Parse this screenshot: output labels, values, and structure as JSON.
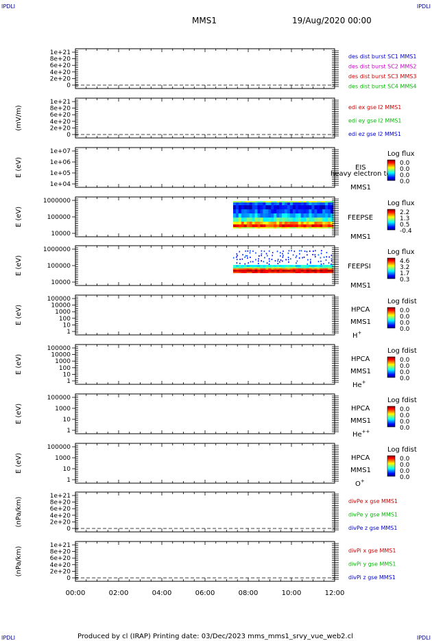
{
  "header": {
    "corner_label": "IPDLI",
    "mission": "MMS1",
    "date": "19/Aug/2020 00:00"
  },
  "footer": {
    "text": "Produced by cl (IRAP)   Printing date: 03/Dec/2023   mms_mms1_srvy_vue_web2.cl"
  },
  "chart_data": {
    "type": "heatmap",
    "time_axis": {
      "range_hours": [
        0,
        12
      ],
      "tick_labels": [
        "00:00",
        "02:00",
        "04:00",
        "06:00",
        "08:00",
        "10:00",
        "12:00"
      ]
    },
    "panels": [
      {
        "kind": "line",
        "ylabel": "",
        "tick_labels": [
          "1e+21",
          "8e+20",
          "6e+20",
          "4e+20",
          "2e+20",
          "0"
        ],
        "zero_line": true,
        "legend": [
          {
            "text": "des dist burst SC1 MMS1",
            "color": "#0000cc"
          },
          {
            "text": "des dist burst SC2 MMS2",
            "color": "#cc00cc"
          },
          {
            "text": "des dist burst SC3 MMS3",
            "color": "#cc0000"
          },
          {
            "text": "des dist burst SC4 MMS4",
            "color": "#00bb00"
          }
        ]
      },
      {
        "kind": "line",
        "ylabel": "(mV/m)",
        "tick_labels": [
          "1e+21",
          "8e+20",
          "6e+20",
          "4e+20",
          "2e+20",
          "0"
        ],
        "zero_line": true,
        "legend": [
          {
            "text": "edi ex gse l2 MMS1",
            "color": "#cc0000"
          },
          {
            "text": "edi ey gse l2 MMS1",
            "color": "#00bb00"
          },
          {
            "text": "edi ez gse l2 MMS1",
            "color": "#0000cc"
          }
        ]
      },
      {
        "kind": "spectrogram",
        "ylabel": "E (eV)",
        "tick_labels": [
          "1e+07",
          "1e+06",
          "1e+05",
          "1e+04"
        ],
        "instrument": [
          "EIS",
          "MMS1"
        ],
        "overlay_text": "heavy electron to",
        "colorbar_title": "Log flux",
        "colorbar_ticks": [
          "0.0",
          "0.0",
          "0.0",
          "0.0"
        ],
        "data_start_hour": null
      },
      {
        "kind": "spectrogram",
        "ylabel": "E (eV)",
        "tick_labels": [
          "1000000",
          "100000",
          "10000"
        ],
        "instrument": [
          "FEEPSE",
          "MMS1"
        ],
        "colorbar_title": "Log flux",
        "colorbar_ticks": [
          "2.2",
          "1.3",
          "0.5",
          "-0.4"
        ],
        "data_start_hour": 7.3
      },
      {
        "kind": "spectrogram",
        "ylabel": "E (eV)",
        "tick_labels": [
          "1000000",
          "100000",
          "10000"
        ],
        "instrument": [
          "FEEPSI",
          "MMS1"
        ],
        "colorbar_title": "Log flux",
        "colorbar_ticks": [
          "4.6",
          "3.2",
          "1.7",
          "0.3"
        ],
        "data_start_hour": 7.3
      },
      {
        "kind": "spectrogram",
        "ylabel": "E (eV)",
        "tick_labels": [
          "100000",
          "10000",
          "1000",
          "100",
          "10",
          "1"
        ],
        "instrument": [
          "HPCA",
          "MMS1"
        ],
        "species": "H",
        "species_sup": "+",
        "colorbar_title": "Log fdist",
        "colorbar_ticks": [
          "0.0",
          "0.0",
          "0.0",
          "0.0"
        ],
        "data_start_hour": null
      },
      {
        "kind": "spectrogram",
        "ylabel": "E (eV)",
        "tick_labels": [
          "100000",
          "10000",
          "1000",
          "100",
          "10",
          "1"
        ],
        "instrument": [
          "HPCA",
          "MMS1"
        ],
        "species": "He",
        "species_sup": "+",
        "colorbar_title": "Log fdist",
        "colorbar_ticks": [
          "0.0",
          "0.0",
          "0.0",
          "0.0"
        ],
        "data_start_hour": null
      },
      {
        "kind": "spectrogram",
        "ylabel": "E (eV)",
        "tick_labels": [
          "100000",
          "1000",
          "10",
          "1"
        ],
        "instrument": [
          "HPCA",
          "MMS1"
        ],
        "species": "He",
        "species_sup": "++",
        "colorbar_title": "Log fdist",
        "colorbar_ticks": [
          "0.0",
          "0.0",
          "0.0",
          "0.0"
        ],
        "data_start_hour": null
      },
      {
        "kind": "spectrogram",
        "ylabel": "E (eV)",
        "tick_labels": [
          "100000",
          "1000",
          "10",
          "1"
        ],
        "instrument": [
          "HPCA",
          "MMS1"
        ],
        "species": "O",
        "species_sup": "+",
        "colorbar_title": "Log fdist",
        "colorbar_ticks": [
          "0.0",
          "0.0",
          "0.0",
          "0.0"
        ],
        "data_start_hour": null
      },
      {
        "kind": "line",
        "ylabel": "(nPa/km)",
        "tick_labels": [
          "1e+21",
          "8e+20",
          "6e+20",
          "4e+20",
          "2e+20",
          "0"
        ],
        "zero_line": true,
        "legend": [
          {
            "text": "divPe x gse MMS1",
            "color": "#cc0000"
          },
          {
            "text": "divPe y gse MMS1",
            "color": "#00bb00"
          },
          {
            "text": "divPe z gse MMS1",
            "color": "#0000cc"
          }
        ]
      },
      {
        "kind": "line",
        "ylabel": "(nPa/km)",
        "tick_labels": [
          "1e+21",
          "8e+20",
          "6e+20",
          "4e+20",
          "2e+20",
          "0"
        ],
        "zero_line": true,
        "legend": [
          {
            "text": "divPi x gse MMS1",
            "color": "#cc0000"
          },
          {
            "text": "divPi y gse MMS1",
            "color": "#00bb00"
          },
          {
            "text": "divPi z gse MMS1",
            "color": "#0000cc"
          }
        ]
      }
    ]
  }
}
